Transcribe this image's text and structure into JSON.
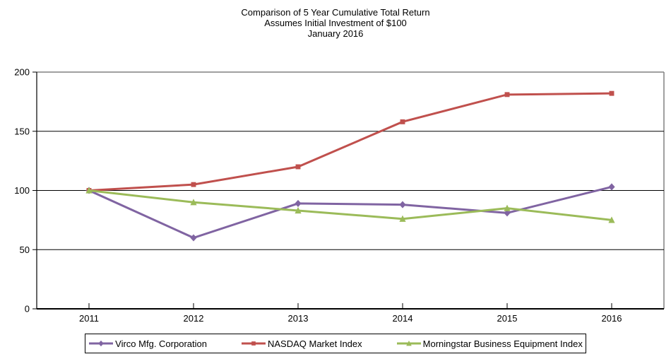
{
  "chart_data": {
    "type": "line",
    "title": "Comparison of 5 Year Cumulative Total Return",
    "subtitle": "Assumes Initial Investment of $100",
    "subtitle2": "January 2016",
    "categories": [
      "2011",
      "2012",
      "2013",
      "2014",
      "2015",
      "2016"
    ],
    "series": [
      {
        "name": "Virco Mfg. Corporation",
        "color": "#8064A2",
        "marker": "diamond",
        "values": [
          100,
          60,
          89,
          88,
          81,
          103
        ]
      },
      {
        "name": "NASDAQ Market Index",
        "color": "#C0504D",
        "marker": "square",
        "values": [
          100,
          105,
          120,
          158,
          181,
          182
        ]
      },
      {
        "name": "Morningstar Business Equipment Index",
        "color": "#9BBB59",
        "marker": "triangle",
        "values": [
          100,
          90,
          83,
          76,
          85,
          75
        ]
      }
    ],
    "xlabel": "",
    "ylabel": "",
    "ylim": [
      0,
      200
    ],
    "yticks": [
      0,
      50,
      100,
      150,
      200
    ],
    "grid": true,
    "legend_position": "bottom"
  }
}
